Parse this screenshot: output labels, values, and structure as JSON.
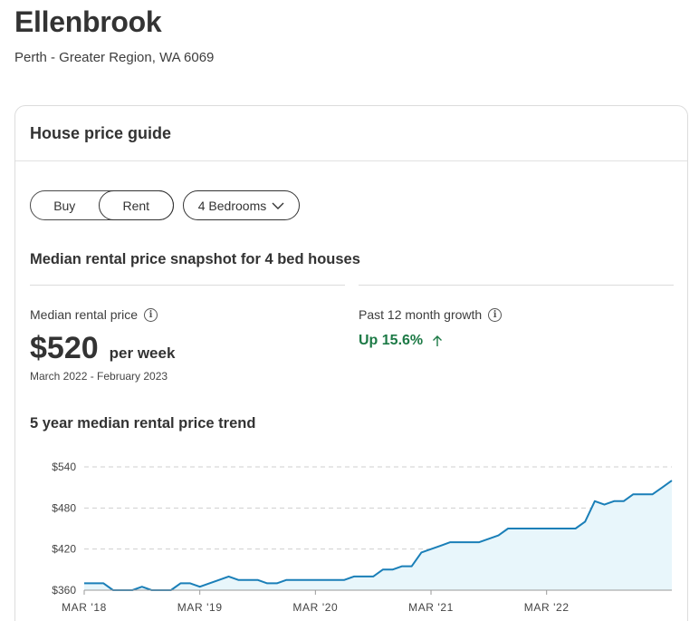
{
  "header": {
    "suburb": "Ellenbrook",
    "region": "Perth - Greater Region, WA 6069"
  },
  "card": {
    "title": "House price guide",
    "toggle": {
      "buy_label": "Buy",
      "rent_label": "Rent",
      "selected": "Rent"
    },
    "bedroom_select": {
      "value": "4 Bedrooms"
    },
    "snapshot_title": "Median rental price snapshot for 4 bed houses",
    "median": {
      "label": "Median rental price",
      "value": "$520",
      "unit": "per week",
      "period": "March 2022 - February 2023"
    },
    "growth": {
      "label": "Past 12 month growth",
      "value": "Up 15.6%"
    },
    "trend_title": "5 year median rental price trend"
  },
  "colors": {
    "accent_line": "#1a7fb8",
    "area_fill": "#e8f6fb",
    "growth_green": "#1d7a46"
  },
  "icons": {
    "info": "info-icon",
    "chevron": "chevron-down-icon",
    "arrow": "arrow-up-icon"
  },
  "chart_data": {
    "type": "area",
    "title": "5 year median rental price trend",
    "xlabel": "",
    "ylabel": "",
    "x_start": "MAR '18",
    "ylim": [
      360,
      540
    ],
    "yticks": [
      "$540",
      "$480",
      "$420",
      "$360"
    ],
    "ytick_values": [
      540,
      480,
      420,
      360
    ],
    "xticks": [
      "MAR '18",
      "MAR '19",
      "MAR '20",
      "MAR '21",
      "MAR '22"
    ],
    "xtick_month_index": [
      0,
      12,
      24,
      36,
      48
    ],
    "grid": true,
    "values": [
      370,
      370,
      370,
      360,
      360,
      360,
      365,
      360,
      360,
      360,
      370,
      370,
      365,
      370,
      375,
      380,
      375,
      375,
      375,
      370,
      370,
      375,
      375,
      375,
      375,
      375,
      375,
      375,
      380,
      380,
      380,
      390,
      390,
      395,
      395,
      415,
      420,
      425,
      430,
      430,
      430,
      430,
      435,
      440,
      450,
      450,
      450,
      450,
      450,
      450,
      450,
      450,
      460,
      490,
      485,
      490,
      490,
      500,
      500,
      500,
      510,
      520
    ]
  }
}
